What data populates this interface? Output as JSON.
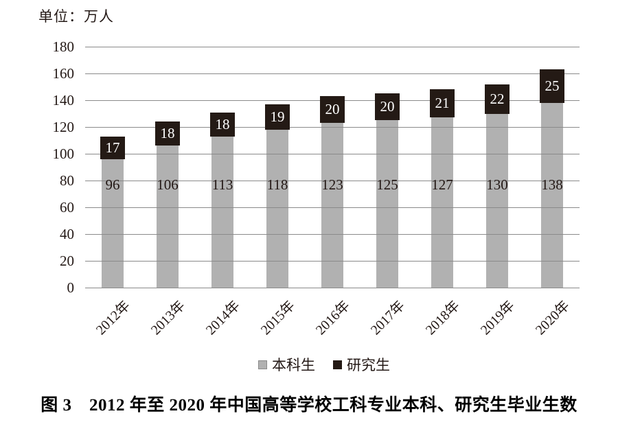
{
  "figure": {
    "unit_label": "单位：万人",
    "caption": "图 3　2012 年至 2020 年中国高等学校工科专业本科、研究生毕业生数"
  },
  "legend": {
    "items": [
      {
        "label": "本科生",
        "color": "#b1b1b1",
        "border": "#8a8a8a"
      },
      {
        "label": "研究生",
        "color": "#241a15",
        "border": "#241a15"
      }
    ]
  },
  "chart_data": {
    "type": "bar",
    "stacked": true,
    "title": "图3 2012年至2020年中国高等学校工科专业本科、研究生毕业生数",
    "unit": "万人",
    "categories": [
      "2012年",
      "2013年",
      "2014年",
      "2015年",
      "2016年",
      "2017年",
      "2018年",
      "2019年",
      "2020年"
    ],
    "series": [
      {
        "name": "本科生",
        "color": "#b1b1b1",
        "values": [
          96,
          106,
          113,
          118,
          123,
          125,
          127,
          130,
          138
        ]
      },
      {
        "name": "研究生",
        "color": "#241a15",
        "values": [
          17,
          18,
          18,
          19,
          20,
          20,
          21,
          22,
          25
        ]
      }
    ],
    "ylim": [
      0,
      180
    ],
    "ytick_step": 20,
    "grid": true,
    "gridline_color": "#8a8a8a",
    "value_label_color_undergrad": "#231815",
    "value_label_color_grad": "#ffffff",
    "legend_position": "bottom"
  }
}
